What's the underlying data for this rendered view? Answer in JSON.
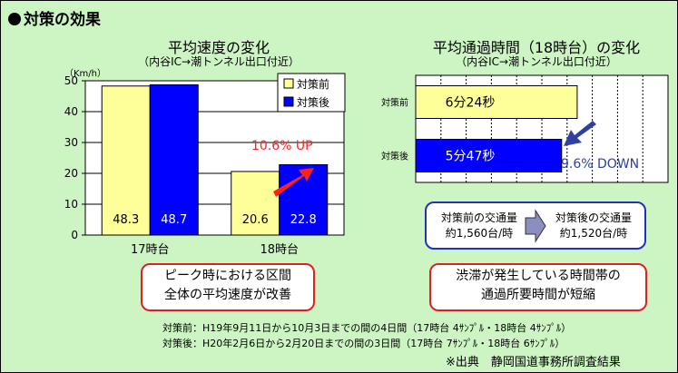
{
  "heading": "対策の効果",
  "left_chart": {
    "title": "平均速度の変化",
    "subtitle": "（内谷IC→潮トンネル出口付近）",
    "unit": "（Km/h）",
    "change_label": "10.6% UP",
    "callout": [
      "ピーク時における区間",
      "全体の平均速度が改善"
    ]
  },
  "right_chart": {
    "title": "平均通過時間（18時台）の変化",
    "subtitle": "（内谷IC→潮トンネル出口付近）",
    "change_label": "9.6% DOWN",
    "callout": [
      "渋滞が発生している時間帯の",
      "通過所要時間が短縮"
    ]
  },
  "traffic": {
    "before_label": "対策前の交通量",
    "before_value": "約1,560台/時",
    "after_label": "対策後の交通量",
    "after_value": "約1,520台/時"
  },
  "notes": [
    "対策前：H19年9月11日から10月3日までの間の4日間（17時台 4ｻﾝﾌﾟﾙ・18時台 4ｻﾝﾌﾟﾙ）",
    "対策後：H20年2月6日から2月20日までの間の3日間（17時台 7ｻﾝﾌﾟﾙ・18時台 6ｻﾝﾌﾟﾙ）"
  ],
  "source": "※出典　静岡国道事務所調査結果",
  "colors": {
    "before": "#ffff99",
    "after": "#0000ff",
    "accent": "#ff2020",
    "arrow_down": "#3040a0"
  },
  "chart_data": [
    {
      "type": "bar",
      "title": "平均速度の変化",
      "categories": [
        "17時台",
        "18時台"
      ],
      "series": [
        {
          "name": "対策前",
          "values": [
            48.3,
            20.6
          ],
          "labels": [
            "48.3",
            "20.6"
          ]
        },
        {
          "name": "対策後",
          "values": [
            48.7,
            22.8
          ],
          "labels": [
            "48.7",
            "22.8"
          ]
        }
      ],
      "ylim": [
        0,
        50
      ],
      "yticks": [
        "0",
        "10",
        "20",
        "30",
        "40",
        "50"
      ],
      "legend_position": "top-right"
    },
    {
      "type": "bar",
      "orientation": "horizontal",
      "title": "平均通過時間（18時台）の変化",
      "categories": [
        "対策前",
        "対策後"
      ],
      "values_seconds": [
        384,
        347
      ],
      "labels": [
        "6分24秒",
        "5分47秒"
      ],
      "grid": true
    }
  ]
}
